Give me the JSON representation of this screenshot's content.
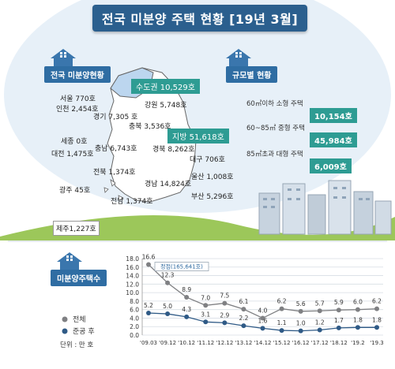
{
  "title": "전국 미분양 주택 현황 [19년 3월]",
  "sections": {
    "national": "전국 미분양현황",
    "by_size": "규모별 현황",
    "count": "미분양주택수"
  },
  "regions": {
    "capital": "수도권 10,529호",
    "provincial": "지방 51,618호",
    "seoul": "서울 770호",
    "incheon": "인천 2,454호",
    "gyeonggi": "경기 7,305 호",
    "gangwon": "강원 5,748호",
    "chungbuk": "충북 3,536호",
    "sejong": "세종 0호",
    "chungnam": "충남 6,743호",
    "daejeon": "대전 1,475호",
    "gyeongbuk": "경북 8,262호",
    "daegu": "대구 706호",
    "jeonbuk": "전북 1,374호",
    "ulsan": "울산 1,008호",
    "gyeongnam": "경남 14,824호",
    "gwangju": "광주 45호",
    "busan": "부산 5,296호",
    "jeonnam": "전남 1,374호",
    "jeju": "제주1,227호"
  },
  "sizes": [
    {
      "label": "60㎡이하 소형 주택",
      "value": "10,154호"
    },
    {
      "label": "60~85㎡ 중형 주택",
      "value": "45,984호"
    },
    {
      "label": "85㎡초과 대형 주택",
      "value": "6,009호"
    }
  ],
  "colors": {
    "banner": "#2b5f8e",
    "teal": "#2e9c93",
    "total_line": "#7f8083",
    "completed_line": "#2f5a86",
    "ground": "#8fbf4a",
    "sky": "#dbe9f5"
  },
  "chart_data": {
    "type": "line",
    "categories": [
      "'09.03",
      "'09.12",
      "'10.12",
      "'11.12",
      "'12.12",
      "'13.12",
      "'14.12",
      "'15.12",
      "'16.12",
      "'17.12",
      "'18.12",
      "'19.2",
      "'19.3"
    ],
    "series": [
      {
        "name": "전체",
        "values": [
          16.6,
          12.3,
          8.9,
          7.0,
          7.5,
          6.1,
          4.0,
          6.2,
          5.6,
          5.7,
          5.9,
          6.0,
          6.2
        ]
      },
      {
        "name": "준공 후",
        "values": [
          5.2,
          5.0,
          4.3,
          3.1,
          2.9,
          2.2,
          1.6,
          1.1,
          1.0,
          1.2,
          1.7,
          1.8,
          1.8
        ]
      }
    ],
    "ylim": [
      0,
      18
    ],
    "yticks": [
      "0.0",
      "2.0",
      "4.0",
      "6.0",
      "8.0",
      "10.0",
      "12.0",
      "14.0",
      "16.0",
      "18.0"
    ],
    "point_labels": {
      "total": [
        "16.6",
        "12.3",
        "8.9",
        "7.0",
        "7.5",
        "6.1",
        "4.0",
        "6.2",
        "5.6",
        "5.7",
        "5.9",
        "6.0",
        "6.2"
      ],
      "completed": [
        "5.2",
        "5.0",
        "4.3",
        "3.1",
        "2.9",
        "2.2",
        "1.6",
        "1.1",
        "1.0",
        "1.2",
        "1.7",
        "1.8",
        "1.8"
      ]
    },
    "annotation": "정점(165,641호)",
    "unit": "단위 : 만 호",
    "legend": [
      "전체",
      "준공 후"
    ],
    "grid": true
  }
}
